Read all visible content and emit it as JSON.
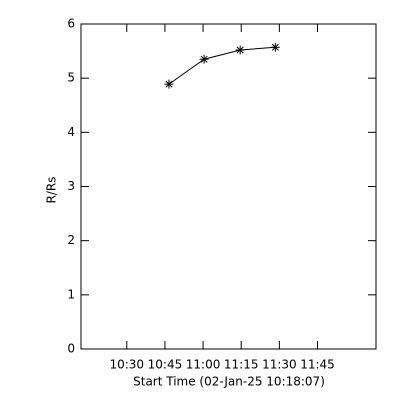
{
  "chart_data": {
    "type": "line",
    "x_label": "Start Time (02-Jan-25 10:18:07)",
    "y_label": "R/Rs",
    "x": [
      46.6,
      60.4,
      74.6,
      88.4
    ],
    "values": [
      4.89,
      5.35,
      5.52,
      5.57
    ],
    "color": "#000000",
    "xlim": [
      12,
      128
    ],
    "xticks": [
      {
        "value": 30,
        "label": "10:30"
      },
      {
        "value": 45,
        "label": "10:45"
      },
      {
        "value": 60,
        "label": "11:00"
      },
      {
        "value": 75,
        "label": "11:15"
      },
      {
        "value": 90,
        "label": "11:30"
      },
      {
        "value": 105,
        "label": "11:45"
      }
    ],
    "ylim": [
      0,
      6
    ],
    "yticks": [
      0,
      1,
      2,
      3,
      4,
      5,
      6
    ]
  }
}
